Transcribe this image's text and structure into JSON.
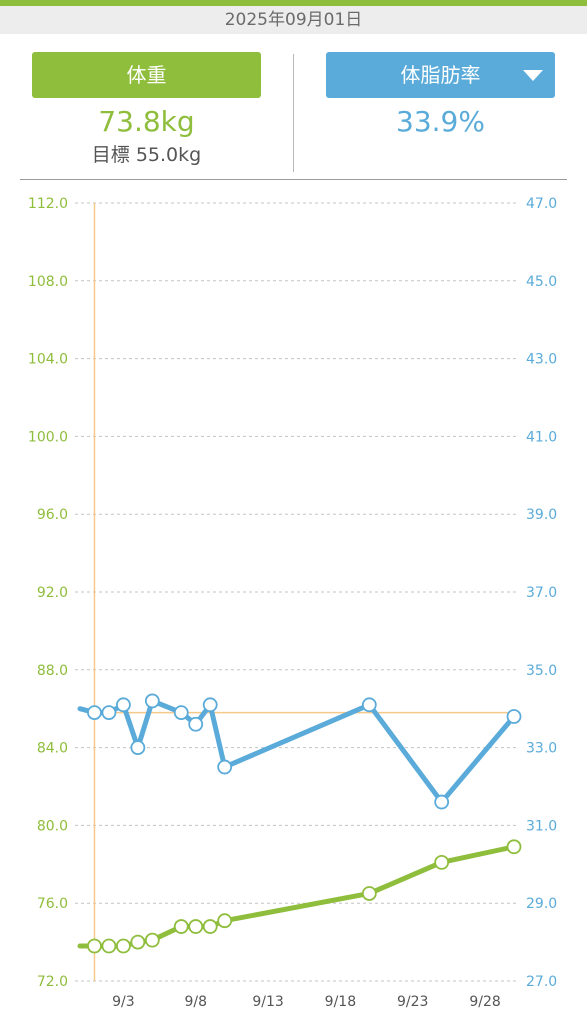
{
  "header": {
    "date": "2025年09月01日"
  },
  "left_panel": {
    "button_label": "体重",
    "value": "73.8kg",
    "goal": "目標 55.0kg"
  },
  "right_panel": {
    "button_label": "体脂肪率",
    "value": "33.9%",
    "dropdown_icon": "caret-down-icon"
  },
  "colors": {
    "weight": "#8fbd3c",
    "body_fat": "#5aabd9",
    "cursor": "#f5c98a",
    "header_bar": "#8fbd3c"
  },
  "chart_data": {
    "type": "line",
    "x_unit": "day of September 2025",
    "x_range": [
      0,
      30
    ],
    "x_tick_values": [
      3,
      8,
      13,
      18,
      23,
      28
    ],
    "x_tick_labels": [
      "9/3",
      "9/8",
      "9/13",
      "9/18",
      "9/23",
      "9/28"
    ],
    "left_axis": {
      "min": 72,
      "max": 112,
      "ticks": [
        "72.0",
        "76.0",
        "80.0",
        "84.0",
        "88.0",
        "92.0",
        "96.0",
        "100.0",
        "104.0",
        "108.0",
        "112.0"
      ]
    },
    "right_axis": {
      "min": 27,
      "max": 47,
      "ticks": [
        "27.0",
        "29.0",
        "31.0",
        "33.0",
        "35.0",
        "37.0",
        "39.0",
        "41.0",
        "43.0",
        "45.0",
        "47.0"
      ]
    },
    "grid": true,
    "selected_day": 1,
    "selected_body_fat": 33.9,
    "series": [
      {
        "axis": "left",
        "x": [
          0,
          1,
          2,
          3,
          4,
          5,
          7,
          8,
          9,
          10,
          20,
          25,
          30
        ],
        "values": [
          73.8,
          73.8,
          73.8,
          73.8,
          74.0,
          74.1,
          74.8,
          74.8,
          74.8,
          75.1,
          76.5,
          78.1,
          78.9
        ]
      },
      {
        "axis": "right",
        "x": [
          0,
          1,
          2,
          3,
          4,
          5,
          7,
          8,
          9,
          10,
          20,
          25,
          30
        ],
        "values": [
          34.0,
          33.9,
          33.9,
          34.1,
          33.0,
          34.2,
          33.9,
          33.6,
          34.1,
          32.5,
          34.1,
          31.6,
          33.8
        ]
      }
    ]
  }
}
